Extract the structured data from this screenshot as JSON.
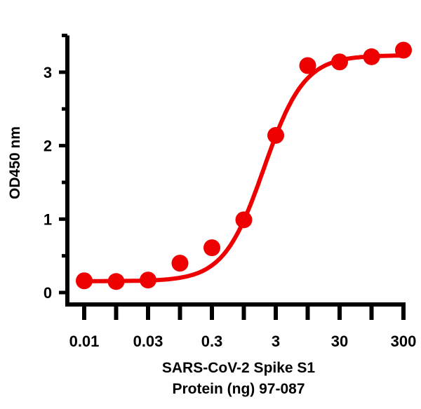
{
  "chart_data": {
    "type": "line",
    "title": "",
    "xlabel": [
      "SARS-CoV-2 Spike S1",
      "Protein (ng) 97-087"
    ],
    "ylabel": "OD450 nm",
    "x_scale": "log (categorical ticks)",
    "x_tick_labels": [
      "0.01",
      "",
      "0.03",
      "",
      "0.3",
      "",
      "3",
      "",
      "30",
      "",
      "300"
    ],
    "y_ticks": [
      "0",
      "1",
      "2",
      "3"
    ],
    "ylim": [
      0,
      3.5
    ],
    "grid": false,
    "series": [
      {
        "values": [
          0.16,
          0.15,
          0.17,
          0.4,
          0.61,
          0.99,
          2.14,
          3.09,
          3.14,
          3.21,
          3.3
        ],
        "color": "#ee0000",
        "marker": "circle",
        "fit": "sigmoidal curve"
      }
    ]
  }
}
